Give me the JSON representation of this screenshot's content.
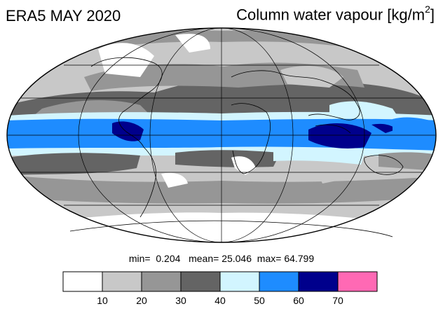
{
  "title": "ERA5 MAY 2020",
  "variable": "Column water vapour [kg/m",
  "unit_superscript": "2",
  "unit_close": "]",
  "stats": {
    "min_label": "min=",
    "min_value": "0.204",
    "mean_label": "mean=",
    "mean_value": "25.046",
    "max_label": "max=",
    "max_value": "64.799"
  },
  "colorbar": {
    "ticks": [
      "10",
      "20",
      "30",
      "40",
      "50",
      "60",
      "70"
    ],
    "colors": [
      "#ffffff",
      "#c8c8c8",
      "#969696",
      "#646464",
      "#d2f5ff",
      "#1e8cff",
      "#00008c",
      "#ff69b4"
    ]
  }
}
